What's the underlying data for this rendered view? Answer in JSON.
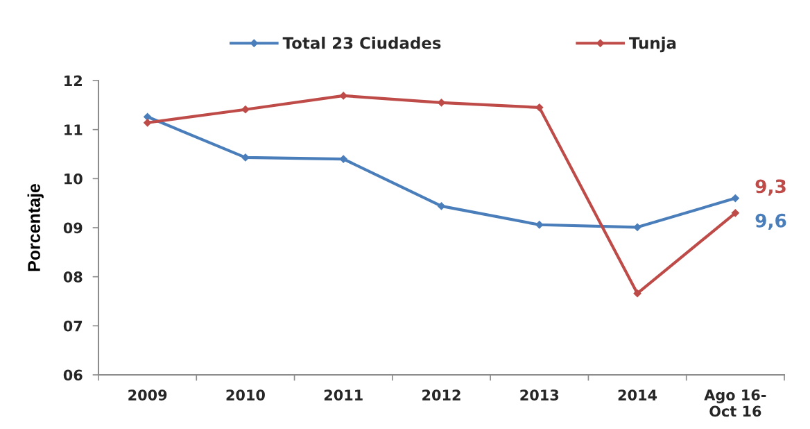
{
  "chart_data": {
    "type": "line",
    "categories": [
      "2009",
      "2010",
      "2011",
      "2012",
      "2013",
      "2014",
      "Ago 16-\nOct 16"
    ],
    "ylabel": "Porcentaje",
    "ylim": [
      6,
      12
    ],
    "yticks": [
      {
        "value": 6,
        "label": "06"
      },
      {
        "value": 7,
        "label": "07"
      },
      {
        "value": 8,
        "label": "08"
      },
      {
        "value": 9,
        "label": "09"
      },
      10,
      11,
      12
    ],
    "series": [
      {
        "name": "Total 23 Ciudades",
        "color": "#4a7ebb",
        "values": [
          11.26,
          10.43,
          10.4,
          9.44,
          9.06,
          9.01,
          9.6
        ],
        "value_labels": [
          null,
          null,
          null,
          null,
          null,
          null,
          "9,6"
        ]
      },
      {
        "name": "Tunja",
        "color": "#be4b48",
        "values": [
          11.14,
          11.41,
          11.69,
          11.55,
          11.45,
          7.66,
          9.3
        ],
        "value_labels": [
          null,
          null,
          null,
          null,
          null,
          null,
          "9,3"
        ]
      }
    ],
    "legend": "top",
    "marker": "diamond",
    "line_style": "solid",
    "grid": false
  }
}
